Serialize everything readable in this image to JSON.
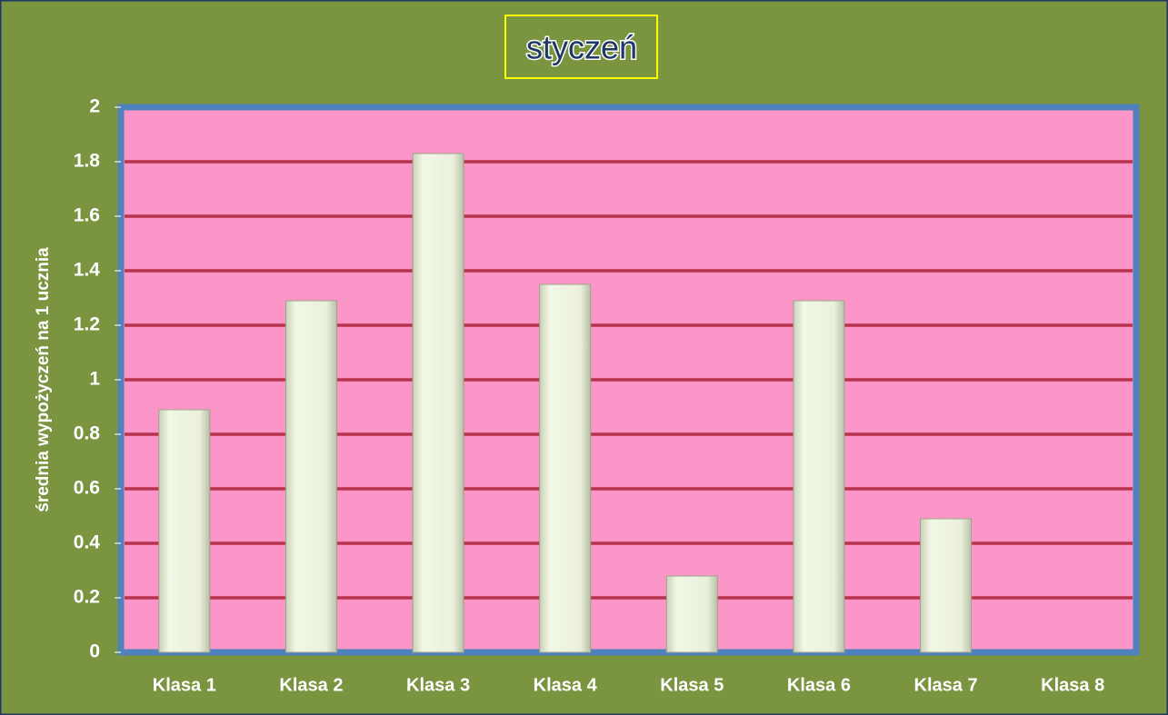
{
  "chart_data": {
    "type": "bar",
    "title": "styczeń",
    "y_label": "średnia wypożyczeń na 1 ucznia",
    "categories": [
      "Klasa 1",
      "Klasa 2",
      "Klasa 3",
      "Klasa 4",
      "Klasa 5",
      "Klasa 6",
      "Klasa 7",
      "Klasa 8"
    ],
    "values": [
      0.89,
      1.29,
      1.83,
      1.35,
      0.28,
      1.29,
      0.49,
      0
    ],
    "color": "#ebf1de",
    "ylim": [
      0,
      2
    ],
    "yticks": [
      0,
      0.2,
      0.4,
      0.6,
      0.8,
      1,
      1.2,
      1.4,
      1.6,
      1.8,
      2
    ],
    "grid": true
  }
}
